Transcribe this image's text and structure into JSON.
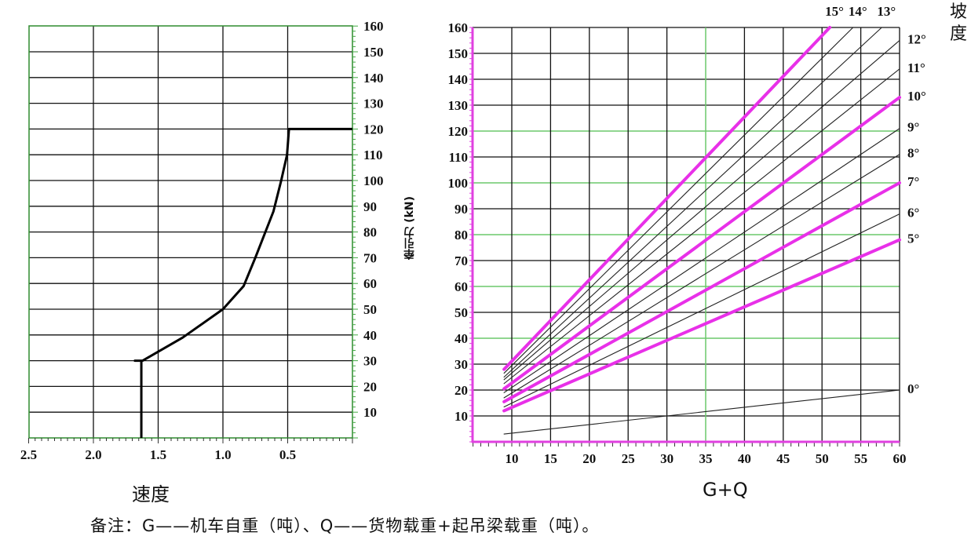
{
  "chart_data": [
    {
      "type": "line",
      "xlabel": "速度",
      "ylabel": "牵引力 (kN)",
      "x_ticks": [
        "2.5",
        "2.0",
        "1.5",
        "1.0",
        "0.5"
      ],
      "y_ticks": [
        "10",
        "20",
        "30",
        "40",
        "50",
        "60",
        "70",
        "80",
        "90",
        "100",
        "110",
        "120",
        "130",
        "140",
        "150",
        "160"
      ],
      "xlim": [
        2.5,
        0
      ],
      "ylim": [
        0,
        160
      ],
      "x_reversed": true,
      "grid": true,
      "series": [
        {
          "x": [
            0,
            0.49,
            0.505,
            0.55,
            0.61,
            0.75,
            0.84,
            1.0,
            1.31,
            1.62,
            1.68,
            1.63,
            1.63
          ],
          "y": [
            120,
            120,
            110,
            100,
            88,
            70,
            59,
            50,
            39,
            30,
            30,
            30,
            0
          ]
        }
      ],
      "colors": {
        "line": "#000000",
        "grid": "#000000",
        "frame": "#2e8b2e"
      }
    },
    {
      "type": "line",
      "xlabel": "G+Q",
      "legend_title": "坡度",
      "x_ticks": [
        "10",
        "15",
        "20",
        "25",
        "30",
        "35",
        "40",
        "45",
        "50",
        "55",
        "60"
      ],
      "y_ticks": [
        "10",
        "20",
        "30",
        "40",
        "50",
        "60",
        "70",
        "80",
        "90",
        "100",
        "110",
        "120",
        "130",
        "140",
        "150",
        "160"
      ],
      "xlim": [
        5,
        60
      ],
      "ylim": [
        0,
        160
      ],
      "grid": true,
      "green_gridlines": {
        "y": [
          40,
          60,
          80,
          100,
          120
        ],
        "x": [
          35
        ]
      },
      "series": [
        {
          "name": "0°",
          "x": [
            9,
            60
          ],
          "y": [
            3,
            20
          ],
          "highlight": false
        },
        {
          "name": "5°",
          "x": [
            9,
            60
          ],
          "y": [
            12,
            78
          ],
          "highlight": true
        },
        {
          "name": "6°",
          "x": [
            9,
            60
          ],
          "y": [
            13.5,
            88
          ],
          "highlight": false
        },
        {
          "name": "7°",
          "x": [
            9,
            60
          ],
          "y": [
            15.5,
            100
          ],
          "highlight": true
        },
        {
          "name": "8°",
          "x": [
            9,
            60
          ],
          "y": [
            17,
            111
          ],
          "highlight": false
        },
        {
          "name": "9°",
          "x": [
            9,
            60
          ],
          "y": [
            19,
            121
          ],
          "highlight": false
        },
        {
          "name": "10°",
          "x": [
            9,
            60
          ],
          "y": [
            20.5,
            133
          ],
          "highlight": true
        },
        {
          "name": "11°",
          "x": [
            9,
            60
          ],
          "y": [
            22.5,
            144
          ],
          "highlight": false
        },
        {
          "name": "12°",
          "x": [
            9,
            60
          ],
          "y": [
            24,
            155
          ],
          "highlight": false
        },
        {
          "name": "13°",
          "x": [
            9,
            57.7
          ],
          "y": [
            25,
            160
          ],
          "highlight": false
        },
        {
          "name": "14°",
          "x": [
            9,
            54
          ],
          "y": [
            26.5,
            160
          ],
          "highlight": false
        },
        {
          "name": "15°",
          "x": [
            9,
            51
          ],
          "y": [
            28,
            160
          ],
          "highlight": true
        }
      ],
      "colors": {
        "highlight": "#e830e8",
        "line": "#222222",
        "grid": "#000000",
        "green_grid": "#6cc96c",
        "axis": "#e040e0"
      }
    }
  ],
  "note": "备注：G——机车自重（吨）、Q——货物载重+起吊梁载重（吨）。"
}
